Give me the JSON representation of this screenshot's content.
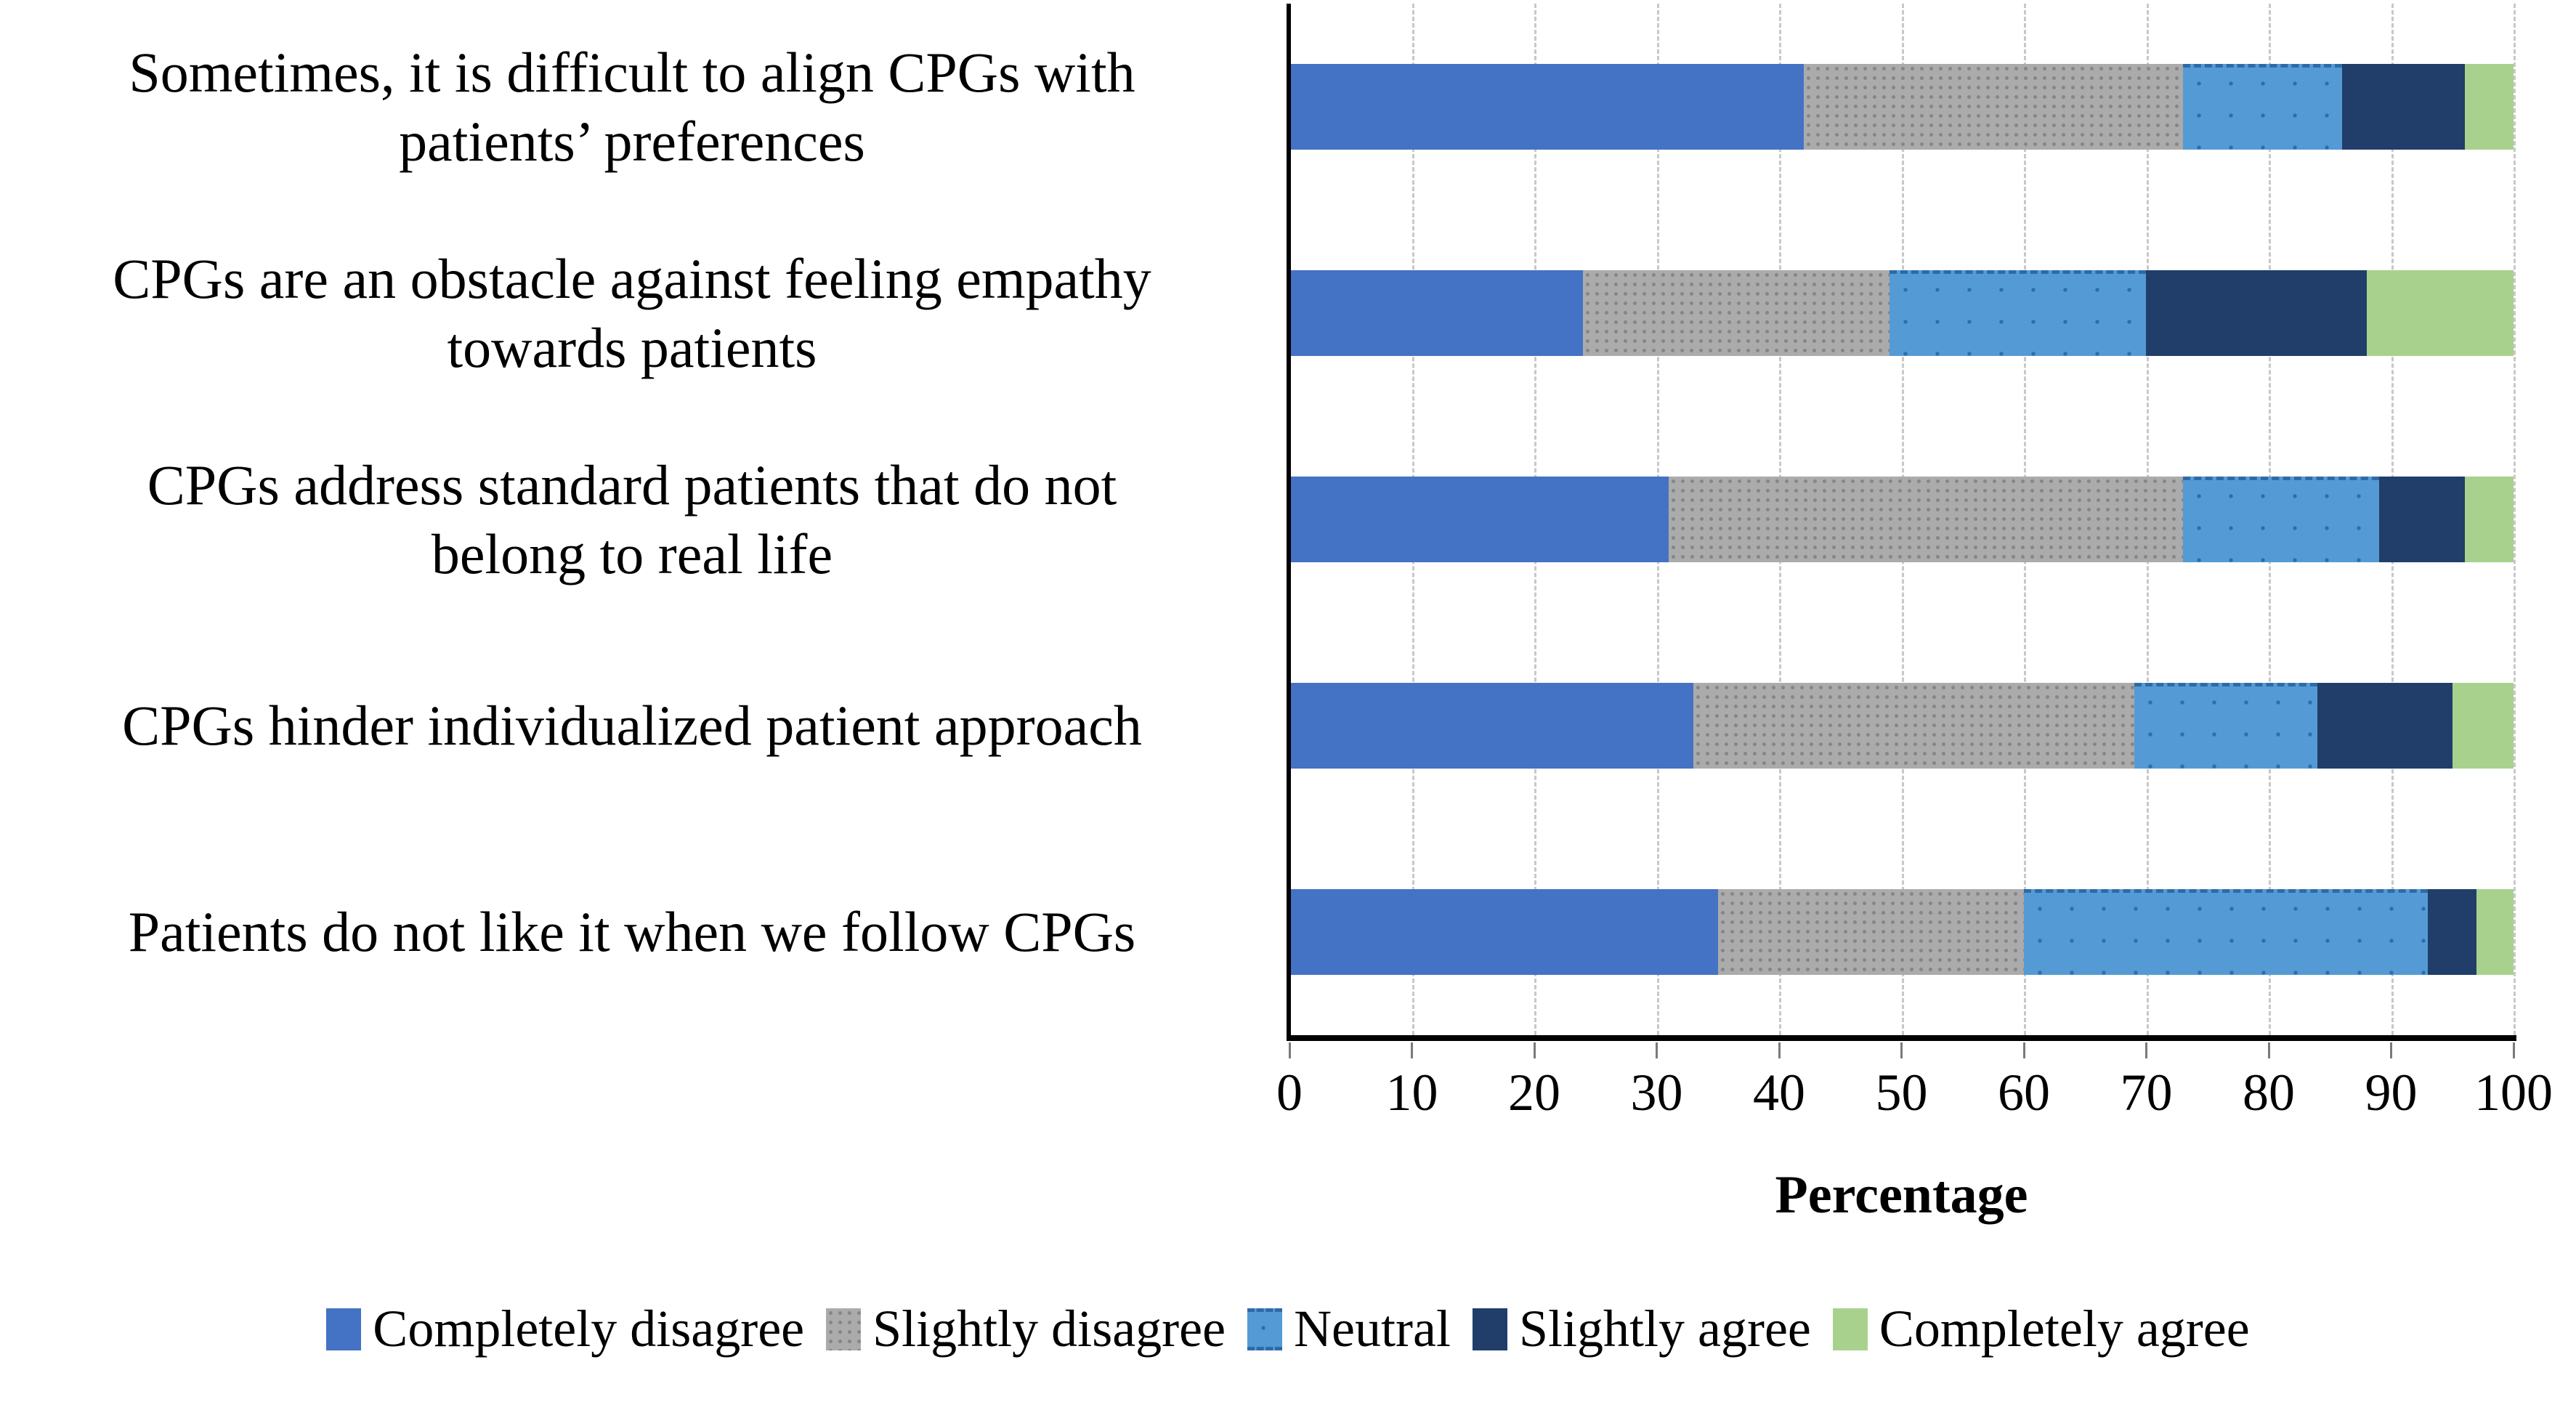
{
  "figure": {
    "kind": "horizontal-stacked-bar-chart",
    "background": "#ffffff"
  },
  "chart_data": {
    "type": "bar",
    "stacked": true,
    "orientation": "horizontal",
    "title": "",
    "xlabel": "Percentage",
    "ylabel": "",
    "xlim": [
      0,
      100
    ],
    "x_ticks": [
      0,
      10,
      20,
      30,
      40,
      50,
      60,
      70,
      80,
      90,
      100
    ],
    "grid": "vertical-dashed-gray",
    "legend_position": "bottom",
    "axis_color": "#000000",
    "gridline_color": "#c8c8c8",
    "categories": [
      "Sometimes, it is difficult to align CPGs with\npatients’ preferences",
      "CPGs are an obstacle against feeling empathy\ntowards patients",
      "CPGs address standard patients that do not\nbelong to real life",
      "CPGs hinder individualized patient approach",
      "Patients do not like it when we follow CPGs"
    ],
    "series": [
      {
        "name": "Completely disagree",
        "color": "#4472c4",
        "pattern": "solid",
        "values": [
          42,
          24,
          31,
          33,
          35
        ]
      },
      {
        "name": "Slightly disagree",
        "color": "#ababab",
        "pattern": "dots",
        "values": [
          31,
          25,
          42,
          36,
          25
        ]
      },
      {
        "name": "Neutral",
        "color": "#549bd5",
        "pattern": "sparse-dots",
        "values": [
          13,
          21,
          16,
          15,
          33
        ]
      },
      {
        "name": "Slightly agree",
        "color": "#203e69",
        "pattern": "solid",
        "values": [
          10,
          18,
          7,
          11,
          4
        ]
      },
      {
        "name": "Completely agree",
        "color": "#a9d18e",
        "pattern": "solid",
        "values": [
          4,
          12,
          4,
          5,
          3
        ]
      }
    ]
  }
}
